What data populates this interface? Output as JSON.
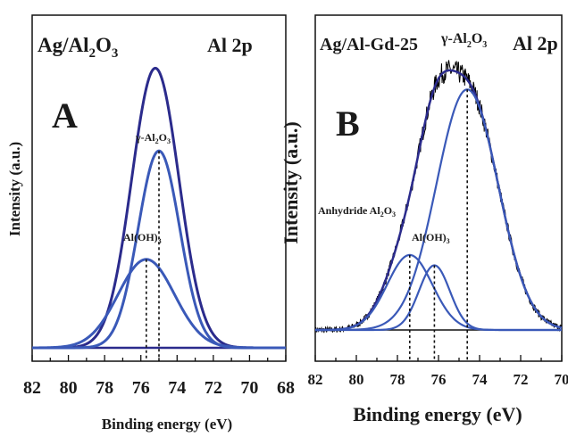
{
  "chart_data": [
    {
      "type": "line",
      "panel": "A",
      "sample": "Ag/Al2O3",
      "sample_parts": [
        "Ag/Al",
        "2",
        "O",
        "3"
      ],
      "region": "Al 2p",
      "xlabel": "Binding energy (eV)",
      "ylabel": "Intensity (a.u.)",
      "xlim": [
        82,
        68
      ],
      "x_ticks": [
        "82",
        "80",
        "78",
        "76",
        "74",
        "72",
        "70",
        "68"
      ],
      "ylim": [
        0,
        1
      ],
      "series": [
        {
          "role": "envelope",
          "color": "#2b2b8c",
          "center": 75.2,
          "width": 1.3,
          "height": 0.98
        },
        {
          "role": "component",
          "color": "#3a59b8",
          "center": 75.0,
          "width": 1.15,
          "height": 0.69
        },
        {
          "role": "component",
          "color": "#3a59b8",
          "center": 75.7,
          "width": 1.55,
          "height": 0.31
        }
      ],
      "annotations": [
        {
          "parts": [
            "γ-Al",
            "2",
            "O",
            "3"
          ],
          "x": 75.0
        },
        {
          "parts": [
            "Al(OH)",
            "3"
          ],
          "x": 75.7
        }
      ],
      "markers": [
        75.0,
        75.7
      ]
    },
    {
      "type": "line",
      "panel": "B",
      "sample": "Ag/Al-Gd-25",
      "region": "Al 2p",
      "xlabel": "Binding energy (eV)",
      "ylabel": "Intensity (a.u.)",
      "xlim": [
        82,
        70
      ],
      "x_ticks": [
        "82",
        "80",
        "78",
        "76",
        "74",
        "72",
        "70"
      ],
      "ylim": [
        0,
        1
      ],
      "series": [
        {
          "role": "fitted-envelope",
          "color": "#2b2b8c",
          "center": 74.6,
          "width": 1.6,
          "height": 0.93,
          "shoulder": true
        },
        {
          "role": "raw-spectrum",
          "color": "#000000",
          "noisy": true
        },
        {
          "role": "component",
          "color": "#3a59b8",
          "center": 74.6,
          "width": 1.5,
          "height": 0.93
        },
        {
          "role": "component",
          "color": "#3a59b8",
          "center": 77.4,
          "width": 1.1,
          "height": 0.29
        },
        {
          "role": "component",
          "color": "#3a59b8",
          "center": 76.2,
          "width": 0.75,
          "height": 0.25
        }
      ],
      "annotations": [
        {
          "parts": [
            "γ-Al",
            "2",
            "O",
            "3"
          ],
          "x": 74.6
        },
        {
          "parts": [
            "Anhydride Al",
            "2",
            "O",
            "3"
          ],
          "x": 77.4
        },
        {
          "parts": [
            "Al(OH)",
            "3"
          ],
          "x": 76.2
        }
      ],
      "markers": [
        74.6,
        77.4,
        76.2
      ]
    }
  ]
}
